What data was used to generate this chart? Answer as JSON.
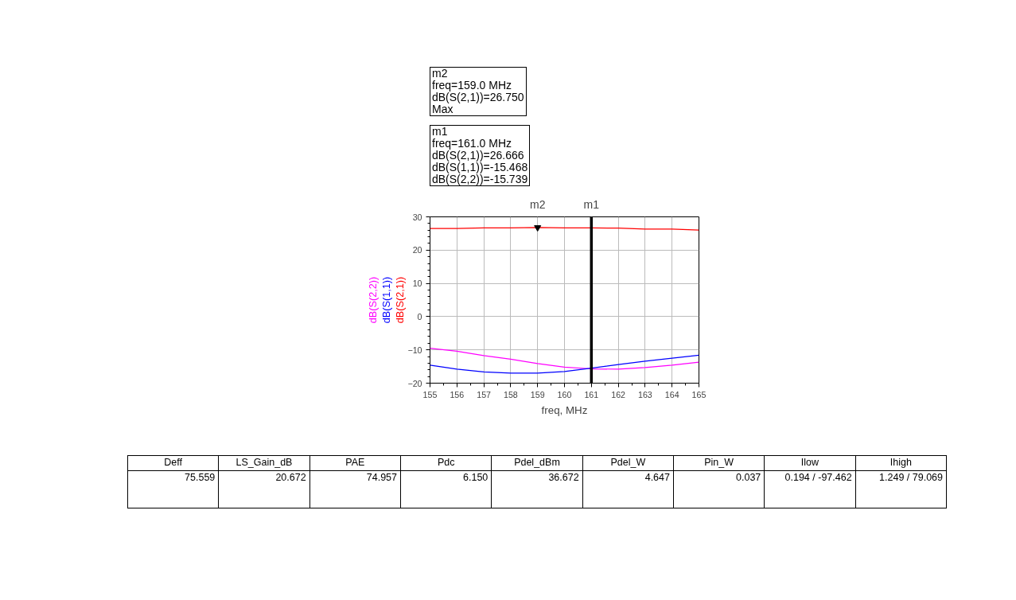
{
  "chart_data": [
    {
      "type": "line",
      "xlabel": "freq, MHz",
      "x": [
        155,
        156,
        157,
        158,
        159,
        160,
        161,
        162,
        163,
        164,
        165
      ],
      "series": [
        {
          "name": "dB(S(2,2))",
          "color": "#ff00ff",
          "values": [
            -9.5,
            -10.4,
            -11.7,
            -12.8,
            -14.1,
            -15.2,
            -15.7,
            -15.8,
            -15.3,
            -14.6,
            -13.7
          ]
        },
        {
          "name": "dB(S(1,1))",
          "color": "#0000ff",
          "values": [
            -14.6,
            -15.8,
            -16.6,
            -17.0,
            -17.0,
            -16.5,
            -15.5,
            -14.4,
            -13.4,
            -12.5,
            -11.6
          ]
        },
        {
          "name": "dB(S(2,1))",
          "color": "#ff0000",
          "values": [
            26.5,
            26.5,
            26.7,
            26.7,
            26.8,
            26.7,
            26.7,
            26.6,
            26.3,
            26.3,
            26.0
          ]
        }
      ],
      "xlim": [
        155,
        165
      ],
      "xticks": [
        155,
        156,
        157,
        158,
        159,
        160,
        161,
        162,
        163,
        164,
        165
      ],
      "ylim": [
        -20,
        30
      ],
      "yticks": [
        -20,
        -10,
        0,
        10,
        20,
        30
      ],
      "grid": true,
      "legend": "left",
      "ref_lines": [
        {
          "axis": "x",
          "value": 161,
          "label": "m1",
          "color": "#000000"
        }
      ],
      "annotations": [
        "m2\nfreq=159.0 MHz\ndB(S(2,1))=26.750\nMax",
        "m1\nfreq=161.0 MHz\ndB(S(2,1))=26.666\ndB(S(1,1))=-15.468\ndB(S(2,2))=-15.739",
        {
          "text": "m2",
          "x": 159,
          "y": 26.8
        }
      ]
    },
    {
      "type": "other",
      "categories": [
        "Deff",
        "LS_Gain_dB",
        "PAE",
        "Pdc",
        "Pdel_dBm",
        "Pdel_W",
        "Pin_W",
        "Ilow",
        "Ihigh"
      ],
      "annotations": [
        "75.559",
        "20.672",
        "74.957",
        "6.150",
        "36.672",
        "4.647",
        "0.037",
        "0.194 / -97.462",
        "1.249 / 79.069"
      ]
    }
  ]
}
